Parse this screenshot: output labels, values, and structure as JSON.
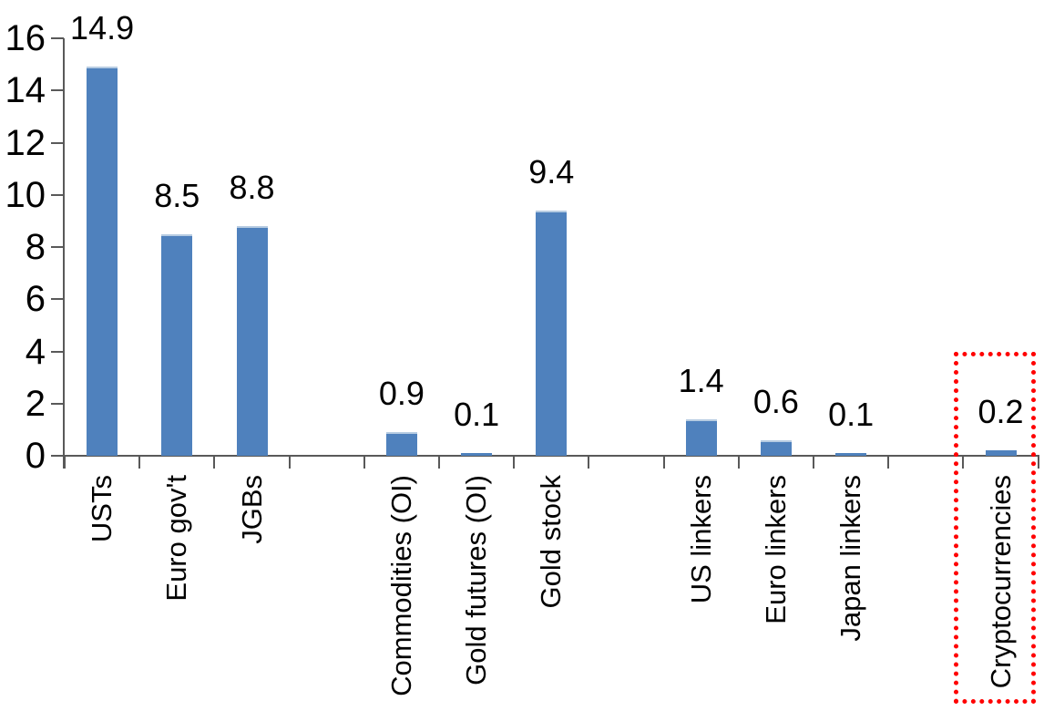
{
  "chart_data": {
    "type": "bar",
    "title": "",
    "xlabel": "",
    "ylabel": "",
    "ylim": [
      0,
      16
    ],
    "ytick_step": 2,
    "ytick_labels": [
      "0",
      "2",
      "4",
      "6",
      "8",
      "10",
      "12",
      "14",
      "16"
    ],
    "grid": false,
    "legend": null,
    "categories": [
      "USTs",
      "Euro gov't",
      "JGBs",
      "",
      "Commodities (OI)",
      "Gold futures (OI)",
      "Gold stock",
      "",
      "US linkers",
      "Euro linkers",
      "Japan linkers",
      "",
      "Cryptocurrencies"
    ],
    "values": [
      14.9,
      8.5,
      8.8,
      null,
      0.9,
      0.1,
      9.4,
      null,
      1.4,
      0.6,
      0.1,
      null,
      0.2
    ],
    "data_labels": [
      "14.9",
      "8.5",
      "8.8",
      "",
      "0.9",
      "0.1",
      "9.4",
      "",
      "1.4",
      "0.6",
      "0.1",
      "",
      "0.2"
    ],
    "colors": {
      "bar": "#4F81BD",
      "bar_top_edge": "#B7CCE2",
      "axis": "#595959",
      "text": "#000000",
      "highlight_box": "#FF0000"
    },
    "highlight": {
      "category": "Cryptocurrencies",
      "index": 12,
      "style": "dotted-box"
    }
  }
}
